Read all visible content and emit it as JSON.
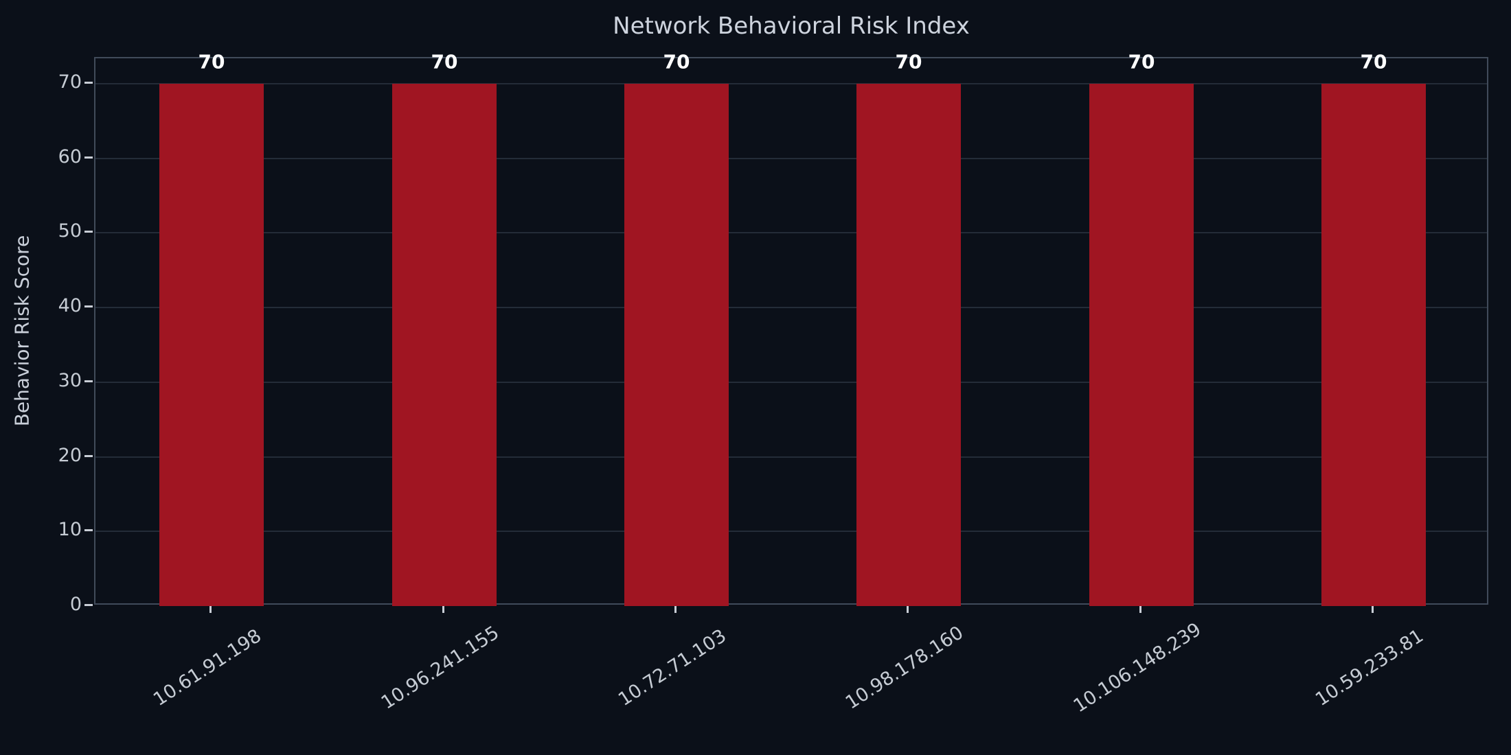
{
  "chart_data": {
    "type": "bar",
    "title": "Network Behavioral Risk Index",
    "xlabel": "",
    "ylabel": "Behavior Risk Score",
    "categories": [
      "10.61.91.198",
      "10.96.241.155",
      "10.72.71.103",
      "10.98.178.160",
      "10.106.148.239",
      "10.59.233.81"
    ],
    "values": [
      70,
      70,
      70,
      70,
      70,
      70
    ],
    "bar_value_labels": [
      "70",
      "70",
      "70",
      "70",
      "70",
      "70"
    ],
    "yticks": [
      0,
      10,
      20,
      30,
      40,
      50,
      60,
      70
    ],
    "ylim": [
      0,
      73.4
    ],
    "grid": "horizontal",
    "legend_position": "none",
    "x_tick_rotation_deg": -33,
    "colors": {
      "bar": "#a01522",
      "background": "#0b1019",
      "gridline": "#242c38",
      "spine": "#414b5a",
      "tick_text": "#c6ccd4",
      "title_text": "#ced4de",
      "axis_label_text": "#c9cfd9",
      "value_label_text": "#ffffff",
      "tick_mark": "#c9ced6"
    }
  }
}
